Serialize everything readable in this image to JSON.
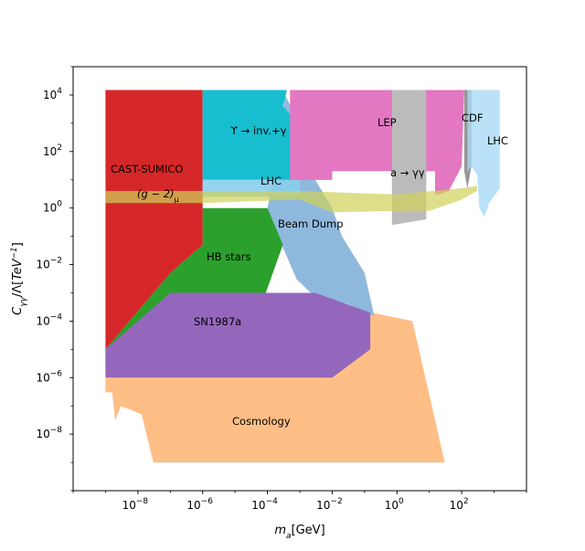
{
  "chart_data": {
    "type": "area",
    "title": "",
    "xlabel": "m_a[GeV]",
    "ylabel": "C_γγ/Λ[TeV^-1]",
    "x_scale": "log",
    "y_scale": "log",
    "xlim": [
      1e-10,
      10000.0
    ],
    "ylim": [
      1e-10,
      100000.0
    ],
    "x_ticks": [
      {
        "value": 1e-08,
        "base": "10",
        "exp": "−8"
      },
      {
        "value": 1e-06,
        "base": "10",
        "exp": "−6"
      },
      {
        "value": 0.0001,
        "base": "10",
        "exp": "−4"
      },
      {
        "value": 0.01,
        "base": "10",
        "exp": "−2"
      },
      {
        "value": 1,
        "base": "10",
        "exp": "0"
      },
      {
        "value": 100,
        "base": "10",
        "exp": "2"
      }
    ],
    "y_ticks": [
      {
        "value": 1e-08,
        "base": "10",
        "exp": "−8"
      },
      {
        "value": 1e-06,
        "base": "10",
        "exp": "−6"
      },
      {
        "value": 0.0001,
        "base": "10",
        "exp": "−4"
      },
      {
        "value": 0.01,
        "base": "10",
        "exp": "−2"
      },
      {
        "value": 1,
        "base": "10",
        "exp": "0"
      },
      {
        "value": 100,
        "base": "10",
        "exp": "2"
      },
      {
        "value": 10000,
        "base": "10",
        "exp": "4"
      }
    ],
    "grid": false,
    "regions": [
      {
        "name": "Cosmology",
        "color": "#ffbe86",
        "label_at": [
          2.6e-05,
          4e-08
        ],
        "points": [
          [
            1e-09,
            1.5e-06
          ],
          [
            1e-05,
            1.5e-06
          ],
          [
            3e-05,
            3e-05
          ],
          [
            0.03,
            0.0003
          ],
          [
            3,
            0.0001
          ],
          [
            30,
            1e-09
          ],
          [
            3e-08,
            1e-09
          ],
          [
            1.3e-08,
            5e-08
          ],
          [
            3e-09,
            1e-07
          ],
          [
            2e-09,
            3e-08
          ],
          [
            1.6e-09,
            3e-07
          ],
          [
            1e-09,
            3e-07
          ]
        ]
      },
      {
        "name": "Beam Dump",
        "color": "#8fb9dc",
        "label_at": [
          0.0025,
          0.2
        ],
        "points": [
          [
            0.00035,
            10000
          ],
          [
            0.00015,
            10
          ],
          [
            0.0001,
            1
          ],
          [
            0.0003,
            0.04
          ],
          [
            0.0008,
            0.003
          ],
          [
            0.003,
            0.0007
          ],
          [
            0.03,
            0.0004
          ],
          [
            0.15,
            0.00017
          ],
          [
            0.2,
            0.00015
          ],
          [
            0.1,
            0.005
          ],
          [
            0.02,
            0.1
          ],
          [
            0.01,
            1
          ],
          [
            0.003,
            10
          ],
          [
            0.01,
            20
          ],
          [
            0.001,
            1000
          ]
        ]
      },
      {
        "name": "HB stars",
        "color": "#2ca02c",
        "label_at": [
          1e-05,
          0.018
        ],
        "points": [
          [
            1e-09,
            1.5e-06
          ],
          [
            1e-05,
            1.5e-06
          ],
          [
            3e-05,
            3e-05
          ],
          [
            0.0003,
            0.05
          ],
          [
            0.0001,
            1
          ],
          [
            1e-06,
            1
          ],
          [
            1e-06,
            0.05
          ],
          [
            1e-07,
            0.005
          ],
          [
            1e-09,
            1e-05
          ]
        ]
      },
      {
        "name": "SN1987a",
        "color": "#9467bd",
        "label_at": [
          2.5e-06,
          0.0001
        ],
        "points": [
          [
            1e-09,
            1e-05
          ],
          [
            1e-07,
            0.001
          ],
          [
            0.003,
            0.001
          ],
          [
            0.15,
            0.0002
          ],
          [
            0.15,
            1e-05
          ],
          [
            0.01,
            1e-06
          ],
          [
            1e-09,
            1e-06
          ]
        ]
      },
      {
        "name": "CAST-SUMICO",
        "color": "#d62728",
        "label_at": [
          3e-08,
          15
        ],
        "points": [
          [
            1e-09,
            15000
          ],
          [
            1e-06,
            15000
          ],
          [
            1e-06,
            0.05
          ],
          [
            1e-07,
            0.005
          ],
          [
            1e-09,
            1e-05
          ]
        ]
      },
      {
        "name": "Υ → inv.+γ",
        "color": "#17becf",
        "label_at": [
          0.0001,
          400
        ],
        "points": [
          [
            1e-06,
            15000
          ],
          [
            0.0004,
            15000
          ],
          [
            0.0003,
            4000
          ],
          [
            0.01,
            40
          ],
          [
            0.01,
            10
          ],
          [
            1e-06,
            10
          ]
        ]
      },
      {
        "name": "LHC",
        "color": "#87ceeb",
        "opacity": 0.9,
        "label_at": [
          0.0001,
          8
        ],
        "points": [
          [
            1e-06,
            10
          ],
          [
            0.001,
            10
          ],
          [
            0.001,
            2.5
          ],
          [
            1e-06,
            2.5
          ]
        ]
      },
      {
        "name": "LEP",
        "color": "#e377c2",
        "label_at": [
          0.25,
          600
        ],
        "points": [
          [
            0.0005,
            15000
          ],
          [
            120,
            15000
          ],
          [
            100,
            30
          ],
          [
            40,
            4
          ],
          [
            20,
            3
          ],
          [
            15,
            3
          ],
          [
            15,
            20
          ],
          [
            0.01,
            20
          ],
          [
            0.01,
            10
          ],
          [
            0.0005,
            10
          ],
          [
            0.0005,
            1000
          ]
        ]
      },
      {
        "name": "a → γγ",
        "color": "#bbbbbb",
        "label_at": [
          0.75,
          15
        ],
        "points": [
          [
            0.7,
            15000
          ],
          [
            8,
            15000
          ],
          [
            8,
            0.4
          ],
          [
            0.7,
            0.25
          ]
        ]
      },
      {
        "name": "CDF",
        "color": "#8c8c8c",
        "opacity": 0.9,
        "label_at": [
          110,
          1000
        ],
        "points": [
          [
            120,
            15000
          ],
          [
            200,
            15000
          ],
          [
            200,
            30
          ],
          [
            150,
            5
          ],
          [
            120,
            20
          ]
        ]
      },
      {
        "name": "LHC",
        "color": "#a9d9f5",
        "opacity": 0.8,
        "label_at": [
          380,
          130
        ],
        "points": [
          [
            150,
            15000
          ],
          [
            1500,
            15000
          ],
          [
            1500,
            5
          ],
          [
            700,
            1.5
          ],
          [
            500,
            0.5
          ],
          [
            350,
            1
          ],
          [
            300,
            15
          ],
          [
            200,
            30
          ],
          [
            150,
            20
          ]
        ]
      },
      {
        "name": "(g − 2)_μ",
        "color": "#cfd15a",
        "opacity": 0.7,
        "label_at": [
          2e-08,
          2.8
        ],
        "points": [
          [
            1e-09,
            4
          ],
          [
            1e-06,
            4
          ],
          [
            0.001,
            4
          ],
          [
            1,
            3
          ],
          [
            100,
            5
          ],
          [
            300,
            6
          ],
          [
            300,
            4
          ],
          [
            100,
            2
          ],
          [
            10,
            0.8
          ],
          [
            1,
            0.8
          ],
          [
            0.01,
            0.7
          ],
          [
            0.001,
            2
          ],
          [
            1e-06,
            1.5
          ],
          [
            1e-09,
            1.5
          ]
        ]
      }
    ]
  },
  "texts": {
    "xlabel_main": "m",
    "xlabel_sub": "a",
    "xlabel_unit": "[GeV]",
    "ylabel_main": "C",
    "ylabel_sub": "γγ",
    "ylabel_mid": "/Λ[",
    "ylabel_unit": "TeV",
    "ylabel_sup": "−1",
    "ylabel_end": "]",
    "cosmology": "Cosmology",
    "beam_dump": "Beam Dump",
    "hb_stars": "HB stars",
    "sn1987a": "SN1987a",
    "cast": "CAST-SUMICO",
    "upsilon": "ϒ → inv.+γ",
    "lhc_left": "LHC",
    "lep": "LEP",
    "a_gg": "a → γγ",
    "cdf": "CDF",
    "lhc_right": "LHC",
    "g2_main": "(g − 2)",
    "g2_sub": "μ"
  }
}
